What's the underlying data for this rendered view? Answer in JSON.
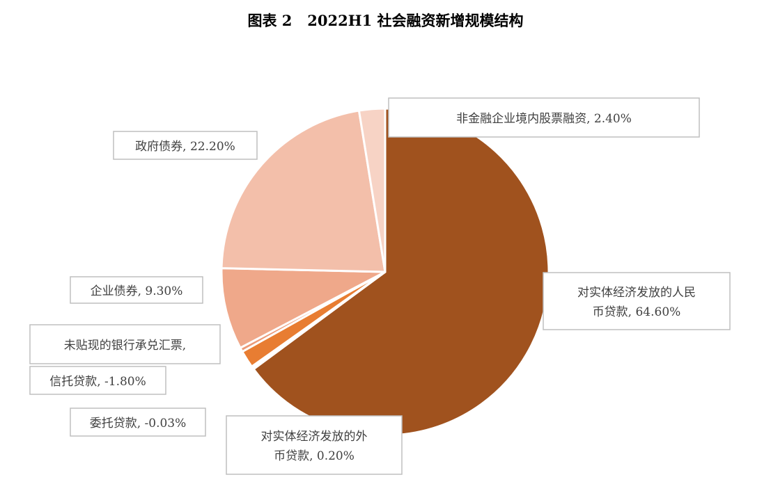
{
  "title": "图表 2   2022H1 社会融资新增规模结构",
  "chart_data": {
    "type": "pie",
    "title": "图表 2   2022H1 社会融资新增规模结构",
    "slices": [
      {
        "key": "rmb-loans",
        "label_lines": [
          "对实体经济发放的人民",
          "币贷款, 64.60%"
        ],
        "label": "对实体经济发放的人民币贷款",
        "value": 64.6,
        "color": "#A0521E"
      },
      {
        "key": "fx-loans",
        "label_lines": [
          "对实体经济发放的外",
          "币贷款, 0.20%"
        ],
        "label": "对实体经济发放的外币贷款",
        "value": 0.2,
        "color": "#B86A2E"
      },
      {
        "key": "entrusted-loans",
        "label_lines": [
          "委托贷款, -0.03%"
        ],
        "label": "委托贷款",
        "value": -0.03,
        "color": "#C8783C"
      },
      {
        "key": "trust-loans",
        "label_lines": [
          "信托贷款, -1.80%"
        ],
        "label": "信托贷款",
        "value": -1.8,
        "color": "#E87D32"
      },
      {
        "key": "undiscounted-bills",
        "label_lines": [
          "未贴现的银行承兑汇票,"
        ],
        "label": "未贴现的银行承兑汇票",
        "value": null,
        "color": "#EB9A78"
      },
      {
        "key": "corporate-bonds",
        "label_lines": [
          "企业债券, 9.30%"
        ],
        "label": "企业债券",
        "value": 9.3,
        "color": "#EFA88A"
      },
      {
        "key": "government-bonds",
        "label_lines": [
          "政府债券, 22.20%"
        ],
        "label": "政府债券",
        "value": 22.2,
        "color": "#F3BFAA"
      },
      {
        "key": "domestic-equity",
        "label_lines": [
          "非金融企业境内股票融资, 2.40%"
        ],
        "label": "非金融企业境内股票融资",
        "value": 2.4,
        "color": "#F7D3C5"
      }
    ]
  }
}
